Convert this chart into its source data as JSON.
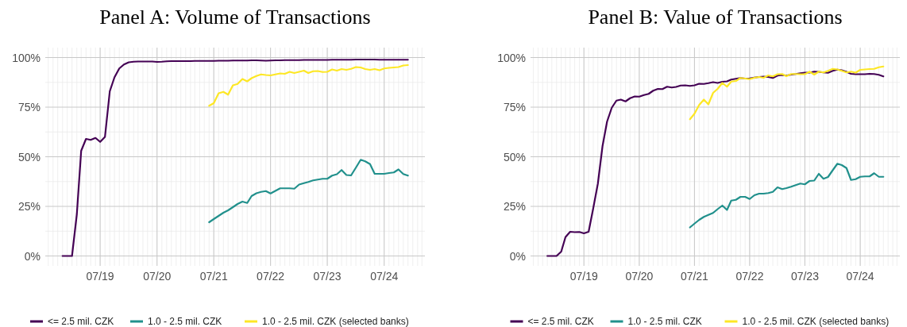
{
  "chart_data": [
    {
      "type": "line",
      "title": "Panel A: Volume of Transactions",
      "x": [
        "2018-11",
        "2018-12",
        "2019-01",
        "2019-02",
        "2019-03",
        "2019-04",
        "2019-05",
        "2019-06",
        "2019-07",
        "2019-08",
        "2019-09",
        "2019-10",
        "2019-11",
        "2019-12",
        "2020-01",
        "2020-02",
        "2020-03",
        "2020-04",
        "2020-05",
        "2020-06",
        "2020-07",
        "2020-08",
        "2020-09",
        "2020-10",
        "2020-11",
        "2020-12",
        "2021-01",
        "2021-02",
        "2021-03",
        "2021-04",
        "2021-05",
        "2021-06",
        "2021-07",
        "2021-08",
        "2021-09",
        "2021-10",
        "2021-11",
        "2021-12",
        "2022-01",
        "2022-02",
        "2022-03",
        "2022-04",
        "2022-05",
        "2022-06",
        "2022-07",
        "2022-08",
        "2022-09",
        "2022-10",
        "2022-11",
        "2022-12",
        "2023-01",
        "2023-02",
        "2023-03",
        "2023-04",
        "2023-05",
        "2023-06",
        "2023-07",
        "2023-08",
        "2023-09",
        "2023-10",
        "2023-11",
        "2023-12",
        "2024-01",
        "2024-02",
        "2024-03",
        "2024-04",
        "2024-05",
        "2024-06",
        "2024-07",
        "2024-08",
        "2024-09",
        "2024-10",
        "2024-11",
        "2024-12"
      ],
      "series": [
        {
          "name": "<= 2.5 mil. CZK",
          "color": "#440154",
          "values": [
            0,
            0,
            0,
            21,
            53,
            59,
            58.5,
            59.5,
            57.5,
            60,
            83,
            90,
            94.5,
            96.5,
            97.6,
            97.9,
            98,
            98,
            98,
            98,
            97.8,
            97.9,
            98.1,
            98.2,
            98.2,
            98.2,
            98.2,
            98.2,
            98.3,
            98.3,
            98.3,
            98.3,
            98.3,
            98.4,
            98.4,
            98.4,
            98.5,
            98.5,
            98.5,
            98.5,
            98.6,
            98.6,
            98.5,
            98.4,
            98.5,
            98.6,
            98.6,
            98.7,
            98.7,
            98.7,
            98.7,
            98.8,
            98.8,
            98.8,
            98.8,
            98.8,
            98.8,
            98.9,
            98.9,
            98.9,
            98.9,
            98.9,
            99,
            99,
            99,
            99,
            99,
            98.9,
            98.9,
            98.9,
            98.9,
            98.9,
            98.9,
            98.9
          ]
        },
        {
          "name": "1.0 - 2.5 mil. CZK",
          "color": "#21908c",
          "values": [
            null,
            null,
            null,
            null,
            null,
            null,
            null,
            null,
            null,
            null,
            null,
            null,
            null,
            null,
            null,
            null,
            null,
            null,
            null,
            null,
            null,
            null,
            null,
            null,
            null,
            null,
            null,
            null,
            null,
            null,
            null,
            17,
            18.6,
            20.2,
            21.8,
            23,
            24.6,
            26.2,
            27.4,
            26.7,
            30.2,
            31.6,
            32.3,
            32.7,
            31.5,
            32.8,
            34.1,
            34.1,
            34.1,
            33.9,
            36,
            36.7,
            37.3,
            38.1,
            38.5,
            38.9,
            38.9,
            40.5,
            41.2,
            43.3,
            40.8,
            40.6,
            44.5,
            48.5,
            47.7,
            46.3,
            41.4,
            41.4,
            41.4,
            41.8,
            42.1,
            43.6,
            41.3,
            40.5
          ]
        },
        {
          "name": "1.0 - 2.5 mil. CZK (selected banks)",
          "color": "#fde725",
          "values": [
            null,
            null,
            null,
            null,
            null,
            null,
            null,
            null,
            null,
            null,
            null,
            null,
            null,
            null,
            null,
            null,
            null,
            null,
            null,
            null,
            null,
            null,
            null,
            null,
            null,
            null,
            null,
            null,
            null,
            null,
            null,
            75.7,
            77,
            82,
            82.7,
            81.3,
            86,
            86.7,
            89.2,
            88,
            89.6,
            90.7,
            91.5,
            91.2,
            91,
            91.5,
            92,
            91.8,
            92.8,
            92.2,
            92.8,
            93.4,
            92.2,
            93.1,
            93.2,
            92.7,
            92.8,
            94,
            93.4,
            94.2,
            93.8,
            94.3,
            95.2,
            95,
            94.2,
            93.8,
            94.2,
            93.6,
            94.5,
            94.8,
            95,
            95.2,
            96,
            96.2
          ]
        }
      ],
      "xlim": [
        "2018-07-13",
        "2025-03-20"
      ],
      "xticks": [
        {
          "value": "2019-07",
          "label": "07/19"
        },
        {
          "value": "2020-07",
          "label": "07/20"
        },
        {
          "value": "2021-07",
          "label": "07/21"
        },
        {
          "value": "2022-07",
          "label": "07/22"
        },
        {
          "value": "2023-07",
          "label": "07/23"
        },
        {
          "value": "2024-07",
          "label": "07/24"
        }
      ],
      "ylim": [
        -5,
        105
      ],
      "yticks": [
        {
          "value": 0,
          "label": "0%"
        },
        {
          "value": 25,
          "label": "25%"
        },
        {
          "value": 50,
          "label": "50%"
        },
        {
          "value": 75,
          "label": "75%"
        },
        {
          "value": 100,
          "label": "100%"
        }
      ],
      "grid": true,
      "legend": "bottom",
      "line_style": "solid",
      "marker": "none"
    },
    {
      "type": "line",
      "title": "Panel B: Value of Transactions",
      "x": [
        "2018-11",
        "2018-12",
        "2019-01",
        "2019-02",
        "2019-03",
        "2019-04",
        "2019-05",
        "2019-06",
        "2019-07",
        "2019-08",
        "2019-09",
        "2019-10",
        "2019-11",
        "2019-12",
        "2020-01",
        "2020-02",
        "2020-03",
        "2020-04",
        "2020-05",
        "2020-06",
        "2020-07",
        "2020-08",
        "2020-09",
        "2020-10",
        "2020-11",
        "2020-12",
        "2021-01",
        "2021-02",
        "2021-03",
        "2021-04",
        "2021-05",
        "2021-06",
        "2021-07",
        "2021-08",
        "2021-09",
        "2021-10",
        "2021-11",
        "2021-12",
        "2022-01",
        "2022-02",
        "2022-03",
        "2022-04",
        "2022-05",
        "2022-06",
        "2022-07",
        "2022-08",
        "2022-09",
        "2022-10",
        "2022-11",
        "2022-12",
        "2023-01",
        "2023-02",
        "2023-03",
        "2023-04",
        "2023-05",
        "2023-06",
        "2023-07",
        "2023-08",
        "2023-09",
        "2023-10",
        "2023-11",
        "2023-12",
        "2024-01",
        "2024-02",
        "2024-03",
        "2024-04",
        "2024-05",
        "2024-06",
        "2024-07",
        "2024-08",
        "2024-09",
        "2024-10",
        "2024-11",
        "2024-12"
      ],
      "series": [
        {
          "name": "<= 2.5 mil. CZK",
          "color": "#440154",
          "values": [
            0,
            0,
            0,
            2.2,
            9.5,
            12.2,
            12,
            12.1,
            11.4,
            12.2,
            24.2,
            36.4,
            55.4,
            67.7,
            74.7,
            78.3,
            78.8,
            77.9,
            79.5,
            80.4,
            80.3,
            81.1,
            81.7,
            83.3,
            84.2,
            84.1,
            85.3,
            84.9,
            85.2,
            85.9,
            86,
            85.7,
            86,
            86.8,
            86.7,
            87.1,
            87.6,
            87.2,
            87.8,
            88,
            88.9,
            89.3,
            89.7,
            89.4,
            89.5,
            89.9,
            90.2,
            90.4,
            90.2,
            89.7,
            90.9,
            91.2,
            90.9,
            91.4,
            91.7,
            92.1,
            92.4,
            92.4,
            92.9,
            92.8,
            92.5,
            92.3,
            93.3,
            93.9,
            93.6,
            92.8,
            91.8,
            91.6,
            91.6,
            91.6,
            91.8,
            91.7,
            91.3,
            90.5
          ]
        },
        {
          "name": "1.0 - 2.5 mil. CZK",
          "color": "#21908c",
          "values": [
            null,
            null,
            null,
            null,
            null,
            null,
            null,
            null,
            null,
            null,
            null,
            null,
            null,
            null,
            null,
            null,
            null,
            null,
            null,
            null,
            null,
            null,
            null,
            null,
            null,
            null,
            null,
            null,
            null,
            null,
            null,
            14.4,
            16.3,
            18.2,
            19.7,
            20.7,
            21.7,
            23.6,
            25.4,
            23.2,
            27.9,
            28.3,
            29.8,
            29.8,
            28.7,
            30.6,
            31.4,
            31.4,
            31.7,
            32.3,
            34.6,
            33.7,
            34.2,
            34.9,
            35.7,
            36.5,
            36.1,
            37.8,
            38,
            41.4,
            38.9,
            39.8,
            43.2,
            46.5,
            45.8,
            44.3,
            38.3,
            38.7,
            39.9,
            40.1,
            40.1,
            41.7,
            39.9,
            39.9
          ]
        },
        {
          "name": "1.0 - 2.5 mil. CZK (selected banks)",
          "color": "#fde725",
          "values": [
            null,
            null,
            null,
            null,
            null,
            null,
            null,
            null,
            null,
            null,
            null,
            null,
            null,
            null,
            null,
            null,
            null,
            null,
            null,
            null,
            null,
            null,
            null,
            null,
            null,
            null,
            null,
            null,
            null,
            null,
            null,
            68.9,
            71.7,
            76.1,
            78.8,
            76.4,
            82.2,
            84.2,
            87.2,
            85.3,
            87.9,
            88.2,
            89.7,
            89.4,
            89.1,
            89.8,
            90.2,
            89.8,
            91,
            90.5,
            91.6,
            91.7,
            90.6,
            91.7,
            91.7,
            91.6,
            91.6,
            92.9,
            91.4,
            92.9,
            92.5,
            93.3,
            94.3,
            94,
            93.3,
            92.5,
            92.9,
            92.4,
            93.8,
            94,
            94.2,
            94.3,
            95.1,
            95.5
          ]
        }
      ],
      "xlim": [
        "2018-07-13",
        "2025-03-20"
      ],
      "xticks": [
        {
          "value": "2019-07",
          "label": "07/19"
        },
        {
          "value": "2020-07",
          "label": "07/20"
        },
        {
          "value": "2021-07",
          "label": "07/21"
        },
        {
          "value": "2022-07",
          "label": "07/22"
        },
        {
          "value": "2023-07",
          "label": "07/23"
        },
        {
          "value": "2024-07",
          "label": "07/24"
        }
      ],
      "ylim": [
        -5,
        105
      ],
      "yticks": [
        {
          "value": 0,
          "label": "0%"
        },
        {
          "value": 25,
          "label": "25%"
        },
        {
          "value": 50,
          "label": "50%"
        },
        {
          "value": 75,
          "label": "75%"
        },
        {
          "value": 100,
          "label": "100%"
        }
      ],
      "grid": true,
      "legend": "bottom",
      "line_style": "solid",
      "marker": "none"
    }
  ]
}
